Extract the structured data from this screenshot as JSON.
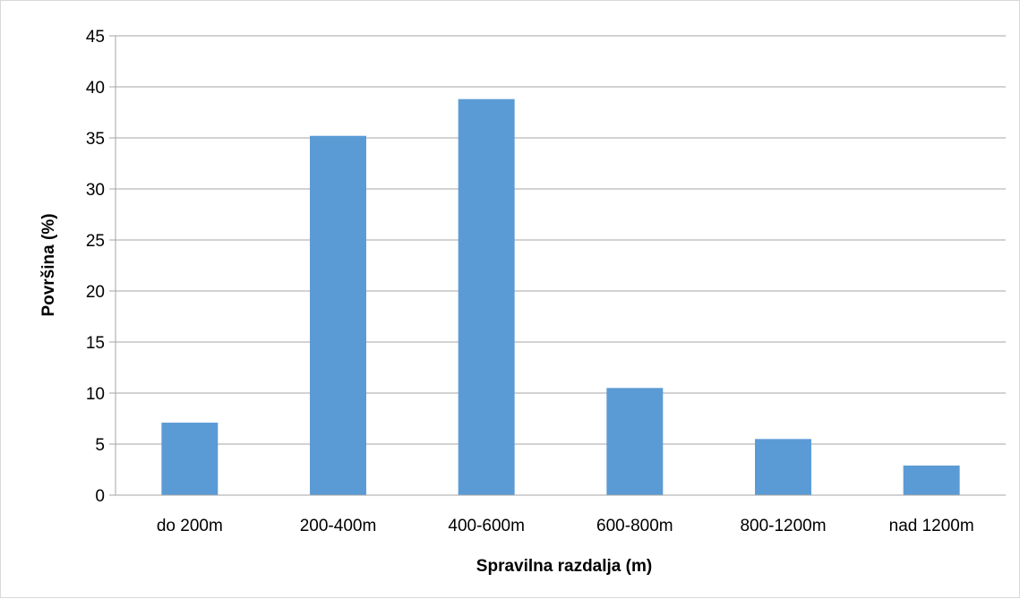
{
  "chart_data": {
    "type": "bar",
    "title": "",
    "xlabel": "Spravilna razdalja (m)",
    "ylabel": "Površina (%)",
    "categories": [
      "do 200m",
      "200-400m",
      "400-600m",
      "600-800m",
      "800-1200m",
      "nad 1200m"
    ],
    "values": [
      7.1,
      35.2,
      38.8,
      10.5,
      5.5,
      2.9
    ],
    "ylim": [
      0,
      45
    ],
    "yticks": [
      0,
      5,
      10,
      15,
      20,
      25,
      30,
      35,
      40,
      45
    ],
    "grid": true,
    "legend": "none",
    "bar_color": "#5b9bd5",
    "grid_color": "#a6a6a6",
    "axis_color": "#a6a6a6"
  }
}
